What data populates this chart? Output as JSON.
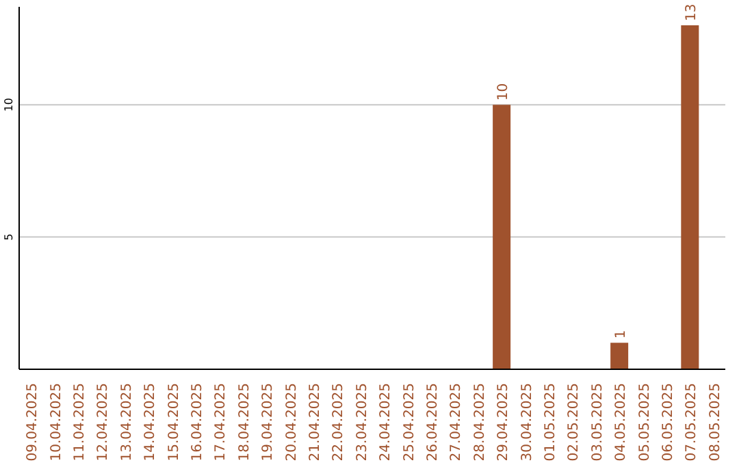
{
  "chart_data": {
    "type": "bar",
    "categories": [
      "09.04.2025",
      "10.04.2025",
      "11.04.2025",
      "12.04.2025",
      "13.04.2025",
      "14.04.2025",
      "15.04.2025",
      "16.04.2025",
      "17.04.2025",
      "18.04.2025",
      "19.04.2025",
      "20.04.2025",
      "21.04.2025",
      "22.04.2025",
      "23.04.2025",
      "24.04.2025",
      "25.04.2025",
      "26.04.2025",
      "27.04.2025",
      "28.04.2025",
      "29.04.2025",
      "30.04.2025",
      "01.05.2025",
      "02.05.2025",
      "03.05.2025",
      "04.05.2025",
      "05.05.2025",
      "06.05.2025",
      "07.05.2025",
      "08.05.2025"
    ],
    "values": [
      0,
      0,
      0,
      0,
      0,
      0,
      0,
      0,
      0,
      0,
      0,
      0,
      0,
      0,
      0,
      0,
      0,
      0,
      0,
      0,
      10,
      0,
      0,
      0,
      0,
      1,
      0,
      0,
      13,
      0
    ],
    "value_labels": [
      null,
      null,
      null,
      null,
      null,
      null,
      null,
      null,
      null,
      null,
      null,
      null,
      null,
      null,
      null,
      null,
      null,
      null,
      null,
      null,
      "10",
      null,
      null,
      null,
      null,
      "1",
      null,
      null,
      "13",
      null
    ],
    "color": "#a0522d",
    "ylim": [
      0,
      13.7
    ],
    "yticks": [
      5,
      10
    ],
    "grid": "y"
  }
}
